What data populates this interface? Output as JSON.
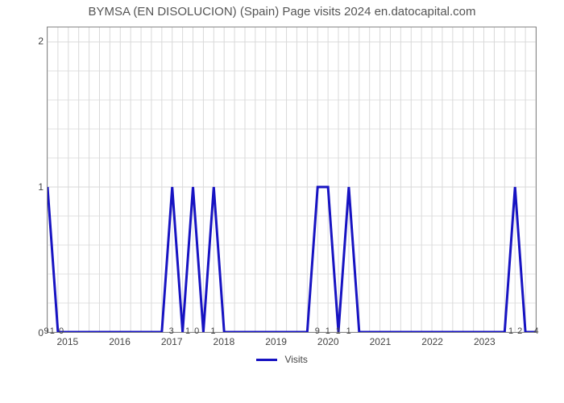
{
  "title": "BYMSA (EN DISOLUCION) (Spain) Page visits 2024 en.datocapital.com",
  "chart": {
    "type": "line",
    "x_values": [
      0,
      1,
      2,
      3,
      4,
      5,
      6,
      7,
      8,
      9,
      10,
      11,
      12,
      13,
      14,
      15,
      16,
      17,
      18,
      19,
      20,
      21,
      22,
      23,
      24,
      25,
      26,
      27,
      28,
      29,
      30,
      31,
      32,
      33,
      34,
      35,
      36,
      37,
      38,
      39,
      40,
      41,
      42,
      43,
      44,
      45,
      46,
      47
    ],
    "y_values": [
      1,
      0,
      0,
      0,
      0,
      0,
      0,
      0,
      0,
      0,
      0,
      0,
      1,
      0,
      1,
      0,
      1,
      0,
      0,
      0,
      0,
      0,
      0,
      0,
      0,
      0,
      1,
      1,
      0,
      1,
      0,
      0,
      0,
      0,
      0,
      0,
      0,
      0,
      0,
      0,
      0,
      0,
      0,
      0,
      0,
      1,
      0,
      0
    ],
    "point_labels": {
      "0": "9",
      "1": "1 0",
      "12": "3",
      "14": "1 0",
      "16": "1",
      "26": "9",
      "27": "1",
      "28": "1",
      "29": "1",
      "45": "1 2",
      "47": "4"
    },
    "x_axis_year_ticks": [
      {
        "pos": 2,
        "label": "2015"
      },
      {
        "pos": 7,
        "label": "2016"
      },
      {
        "pos": 12,
        "label": "2017"
      },
      {
        "pos": 17,
        "label": "2018"
      },
      {
        "pos": 22,
        "label": "2019"
      },
      {
        "pos": 27,
        "label": "2020"
      },
      {
        "pos": 32,
        "label": "2021"
      },
      {
        "pos": 37,
        "label": "2022"
      },
      {
        "pos": 42,
        "label": "2023"
      }
    ],
    "y_ticks": [
      0,
      1,
      2
    ],
    "y_minor_count": 4,
    "ylim": [
      0,
      2.1
    ],
    "line_color": "#1713c2",
    "line_width": 3,
    "grid_color": "#d9d9d9",
    "axis_color": "#888888",
    "background": "#ffffff",
    "title_fontsize": 15,
    "tick_fontsize": 12
  },
  "legend": {
    "label": "Visits",
    "color": "#1713c2"
  }
}
